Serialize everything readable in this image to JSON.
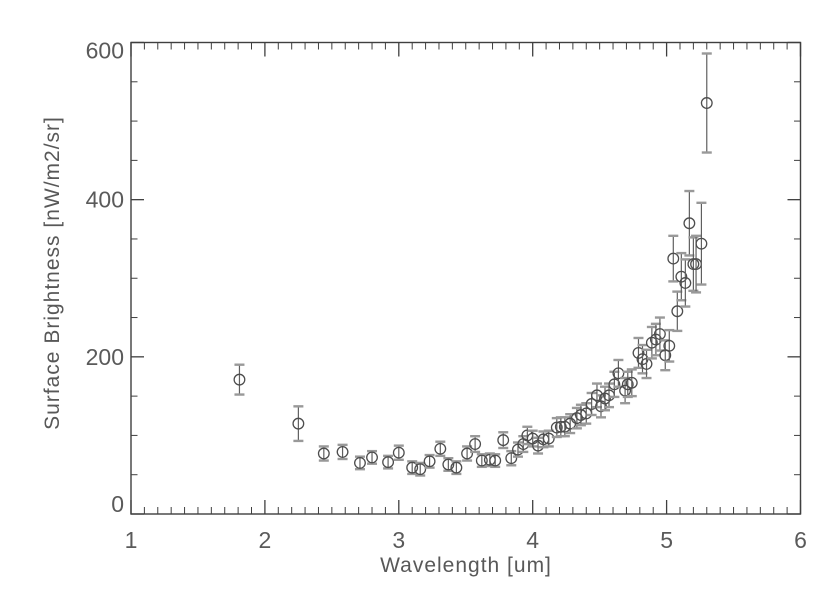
{
  "figure": {
    "background": "#ffffff",
    "axis_color": "#3f3f3f",
    "tick_label_color": "#5a5a5a",
    "marker_color": "#4d4d4d",
    "errorbar_color": "#5f5f5f",
    "errorcap_color": "#999999"
  },
  "chart_data": {
    "type": "scatter",
    "title": "",
    "xlabel": "Wavelength [um]",
    "ylabel": "Surface Brightness [nW/m2/sr]",
    "xlim": [
      1,
      6
    ],
    "ylim": [
      0,
      600
    ],
    "x_major_ticks": [
      1,
      2,
      3,
      4,
      5,
      6
    ],
    "x_tick_labels": [
      "1",
      "2",
      "3",
      "4",
      "5",
      "6"
    ],
    "x_minor_interval": 0.1,
    "y_major_ticks": [
      0,
      200,
      400,
      600
    ],
    "y_tick_labels": [
      "0",
      "200",
      "400",
      "600"
    ],
    "y_minor_interval": 50,
    "grid": false,
    "legend": null,
    "marker": "open-circle",
    "error_bars": true,
    "points": [
      {
        "x": 1.81,
        "y": 171,
        "e": 19
      },
      {
        "x": 2.25,
        "y": 115,
        "e": 22
      },
      {
        "x": 2.44,
        "y": 77,
        "e": 9
      },
      {
        "x": 2.58,
        "y": 79,
        "e": 9
      },
      {
        "x": 2.71,
        "y": 65,
        "e": 8
      },
      {
        "x": 2.8,
        "y": 72,
        "e": 8
      },
      {
        "x": 2.92,
        "y": 66,
        "e": 8
      },
      {
        "x": 3.0,
        "y": 78,
        "e": 9
      },
      {
        "x": 3.1,
        "y": 59,
        "e": 8
      },
      {
        "x": 3.16,
        "y": 57,
        "e": 8
      },
      {
        "x": 3.23,
        "y": 67,
        "e": 8
      },
      {
        "x": 3.31,
        "y": 83,
        "e": 9
      },
      {
        "x": 3.37,
        "y": 63,
        "e": 8
      },
      {
        "x": 3.43,
        "y": 59,
        "e": 8
      },
      {
        "x": 3.51,
        "y": 77,
        "e": 9
      },
      {
        "x": 3.57,
        "y": 89,
        "e": 10
      },
      {
        "x": 3.62,
        "y": 68,
        "e": 8
      },
      {
        "x": 3.68,
        "y": 69,
        "e": 8
      },
      {
        "x": 3.72,
        "y": 68,
        "e": 8
      },
      {
        "x": 3.78,
        "y": 94,
        "e": 10
      },
      {
        "x": 3.84,
        "y": 71,
        "e": 9
      },
      {
        "x": 3.89,
        "y": 82,
        "e": 9
      },
      {
        "x": 3.93,
        "y": 89,
        "e": 10
      },
      {
        "x": 3.96,
        "y": 100,
        "e": 11
      },
      {
        "x": 4.0,
        "y": 96,
        "e": 10
      },
      {
        "x": 4.04,
        "y": 87,
        "e": 10
      },
      {
        "x": 4.08,
        "y": 95,
        "e": 10
      },
      {
        "x": 4.12,
        "y": 96,
        "e": 10
      },
      {
        "x": 4.18,
        "y": 110,
        "e": 12
      },
      {
        "x": 4.21,
        "y": 111,
        "e": 12
      },
      {
        "x": 4.24,
        "y": 111,
        "e": 12
      },
      {
        "x": 4.28,
        "y": 115,
        "e": 12
      },
      {
        "x": 4.33,
        "y": 122,
        "e": 13
      },
      {
        "x": 4.36,
        "y": 126,
        "e": 13
      },
      {
        "x": 4.4,
        "y": 128,
        "e": 13
      },
      {
        "x": 4.44,
        "y": 140,
        "e": 14
      },
      {
        "x": 4.48,
        "y": 151,
        "e": 15
      },
      {
        "x": 4.51,
        "y": 137,
        "e": 14
      },
      {
        "x": 4.54,
        "y": 147,
        "e": 15
      },
      {
        "x": 4.57,
        "y": 151,
        "e": 15
      },
      {
        "x": 4.61,
        "y": 165,
        "e": 16
      },
      {
        "x": 4.64,
        "y": 179,
        "e": 17
      },
      {
        "x": 4.69,
        "y": 157,
        "e": 16
      },
      {
        "x": 4.71,
        "y": 165,
        "e": 16
      },
      {
        "x": 4.74,
        "y": 167,
        "e": 17
      },
      {
        "x": 4.79,
        "y": 205,
        "e": 19
      },
      {
        "x": 4.82,
        "y": 197,
        "e": 18
      },
      {
        "x": 4.85,
        "y": 191,
        "e": 18
      },
      {
        "x": 4.89,
        "y": 218,
        "e": 20
      },
      {
        "x": 4.92,
        "y": 222,
        "e": 20
      },
      {
        "x": 4.95,
        "y": 229,
        "e": 21
      },
      {
        "x": 4.99,
        "y": 202,
        "e": 19
      },
      {
        "x": 5.02,
        "y": 214,
        "e": 20
      },
      {
        "x": 5.05,
        "y": 325,
        "e": 29
      },
      {
        "x": 5.08,
        "y": 258,
        "e": 25
      },
      {
        "x": 5.11,
        "y": 302,
        "e": 30
      },
      {
        "x": 5.14,
        "y": 294,
        "e": 30
      },
      {
        "x": 5.17,
        "y": 370,
        "e": 41
      },
      {
        "x": 5.2,
        "y": 318,
        "e": 34
      },
      {
        "x": 5.22,
        "y": 318,
        "e": 36
      },
      {
        "x": 5.26,
        "y": 344,
        "e": 52
      },
      {
        "x": 5.3,
        "y": 523,
        "e": 63
      }
    ]
  }
}
